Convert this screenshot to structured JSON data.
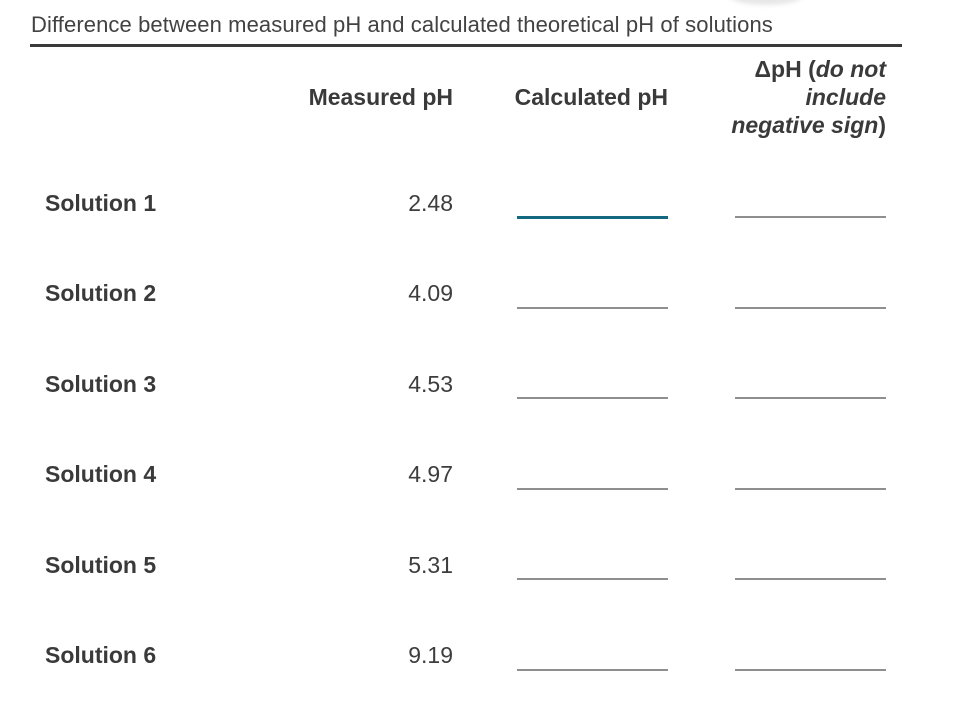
{
  "title": "Difference between measured pH and calculated theoretical pH of solutions",
  "table": {
    "headers": {
      "measured": "Measured pH",
      "calculated": "Calculated pH",
      "delta": {
        "prefix": "ΔpH (",
        "italic_line1": "do not",
        "italic_line2": "include",
        "italic_line3": "negative sign",
        "suffix": ")"
      }
    },
    "rows": [
      {
        "label": "Solution 1",
        "measured": "2.48",
        "calculated": "",
        "delta": ""
      },
      {
        "label": "Solution 2",
        "measured": "4.09",
        "calculated": "",
        "delta": ""
      },
      {
        "label": "Solution 3",
        "measured": "4.53",
        "calculated": "",
        "delta": ""
      },
      {
        "label": "Solution 4",
        "measured": "4.97",
        "calculated": "",
        "delta": ""
      },
      {
        "label": "Solution 5",
        "measured": "5.31",
        "calculated": "",
        "delta": ""
      },
      {
        "label": "Solution 6",
        "measured": "9.19",
        "calculated": "",
        "delta": ""
      }
    ],
    "focused_blank": "solution-1-calculated"
  },
  "colors": {
    "focus_teal": "#136a80",
    "underline_gray": "#8f8f8f",
    "rule_dark": "#3a3a3a",
    "text_dark": "#3d3d3d"
  }
}
